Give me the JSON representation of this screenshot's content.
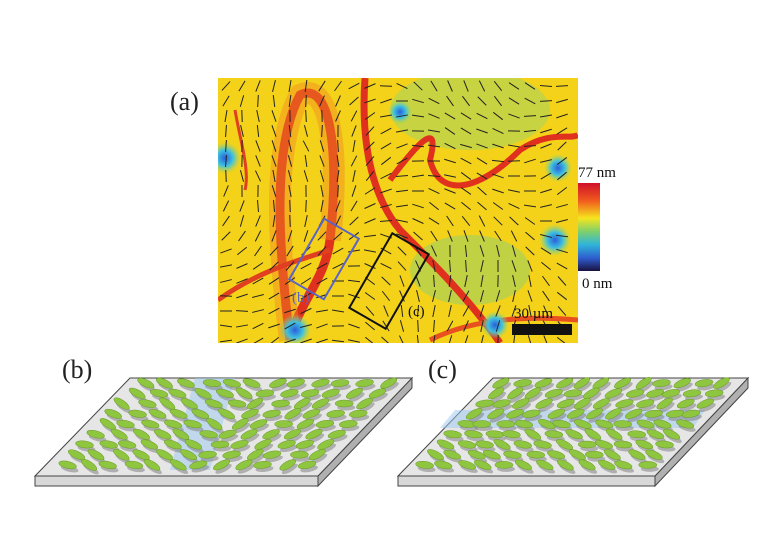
{
  "panels": {
    "a": {
      "label": "(a)",
      "colorbar": {
        "max_label": "77 nm",
        "min_label": "0 nm"
      },
      "scale_bar": "30 µm",
      "box_b_label": "(b)",
      "box_c_label": "(c)"
    },
    "b": {
      "label": "(b)"
    },
    "c": {
      "label": "(c)"
    }
  }
}
